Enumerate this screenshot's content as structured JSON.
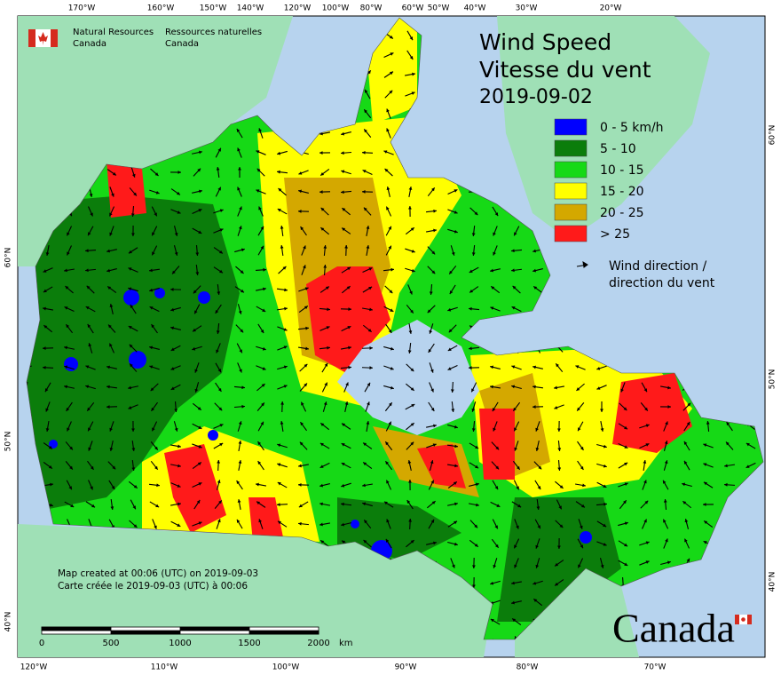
{
  "header": {
    "en_line1": "Natural Resources",
    "en_line2": "Canada",
    "fr_line1": "Ressources naturelles",
    "fr_line2": "Canada"
  },
  "title": {
    "line1": "Wind Speed",
    "line2": "Vitesse du vent",
    "date": "2019-09-02"
  },
  "legend": {
    "items": [
      {
        "label": "0 - 5 km/h",
        "color": "#0000ff"
      },
      {
        "label": "5 - 10",
        "color": "#0b7d0b"
      },
      {
        "label": "10 - 15",
        "color": "#16d916"
      },
      {
        "label": "15 - 20",
        "color": "#ffff00"
      },
      {
        "label": "20 - 25",
        "color": "#d4a800"
      },
      {
        "label": "> 25",
        "color": "#ff1a1a"
      }
    ],
    "arrow_line1": "Wind direction /",
    "arrow_line2": "direction du vent"
  },
  "graticule": {
    "top": [
      "170°W",
      "160°W",
      "150°W",
      "140°W",
      "120°W",
      "100°W",
      "80°W",
      "60°W",
      "50°W",
      "40°W",
      "30°W",
      "20°W"
    ],
    "bottom": [
      "120°W",
      "110°W",
      "100°W",
      "90°W",
      "80°W",
      "70°W"
    ],
    "left": [
      "60°N",
      "50°N",
      "40°N"
    ],
    "right": [
      "60°N",
      "50°N",
      "40°N"
    ]
  },
  "notes": {
    "line1": "Map created at 00:06 (UTC) on 2019-09-03",
    "line2": "Carte créée le 2019-09-03 (UTC) à 00:06"
  },
  "scale_bar": {
    "labels": [
      "0",
      "500",
      "1000",
      "1500",
      "2000"
    ],
    "unit": "km"
  },
  "wordmark": "Canada"
}
